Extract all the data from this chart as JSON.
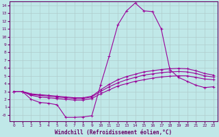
{
  "xlabel": "Windchill (Refroidissement éolien,°C)",
  "ylabel": "",
  "bg_color": "#c0e8e8",
  "line_color": "#990099",
  "grid_color": "#b0cccc",
  "axis_color": "#660066",
  "xlim": [
    -0.5,
    23.5
  ],
  "ylim": [
    -0.8,
    14.5
  ],
  "xticks": [
    0,
    1,
    2,
    3,
    4,
    5,
    6,
    7,
    8,
    9,
    10,
    11,
    12,
    13,
    14,
    15,
    16,
    17,
    18,
    19,
    20,
    21,
    22,
    23
  ],
  "yticks": [
    0,
    1,
    2,
    3,
    4,
    5,
    6,
    7,
    8,
    9,
    10,
    11,
    12,
    13,
    14
  ],
  "series1_x": [
    0,
    1,
    2,
    3,
    4,
    5,
    6,
    7,
    8,
    9,
    10,
    11,
    12,
    13,
    14,
    15,
    16,
    17,
    18,
    19,
    20,
    21,
    22,
    23
  ],
  "series1_y": [
    3.0,
    3.0,
    2.0,
    1.6,
    1.5,
    1.3,
    -0.3,
    -0.3,
    -0.25,
    -0.1,
    3.8,
    7.5,
    11.5,
    13.3,
    14.3,
    13.3,
    13.2,
    11.0,
    5.8,
    4.8,
    4.3,
    3.8,
    3.5,
    3.6
  ],
  "series2_x": [
    0,
    1,
    2,
    3,
    4,
    5,
    6,
    7,
    8,
    9,
    10,
    11,
    12,
    13,
    14,
    15,
    16,
    17,
    18,
    19,
    20,
    21,
    22,
    23
  ],
  "series2_y": [
    3.0,
    3.0,
    2.5,
    2.3,
    2.2,
    2.1,
    2.0,
    1.9,
    1.9,
    2.1,
    2.7,
    3.2,
    3.7,
    4.0,
    4.3,
    4.5,
    4.7,
    4.85,
    4.95,
    5.0,
    5.0,
    4.8,
    4.6,
    4.5
  ],
  "series3_x": [
    0,
    1,
    2,
    3,
    4,
    5,
    6,
    7,
    8,
    9,
    10,
    11,
    12,
    13,
    14,
    15,
    16,
    17,
    18,
    19,
    20,
    21,
    22,
    23
  ],
  "series3_y": [
    3.0,
    3.0,
    2.6,
    2.5,
    2.4,
    2.3,
    2.2,
    2.1,
    2.1,
    2.3,
    3.0,
    3.6,
    4.1,
    4.5,
    4.8,
    5.1,
    5.25,
    5.4,
    5.5,
    5.55,
    5.5,
    5.3,
    5.0,
    4.85
  ],
  "series4_x": [
    0,
    1,
    2,
    3,
    4,
    5,
    6,
    7,
    8,
    9,
    10,
    11,
    12,
    13,
    14,
    15,
    16,
    17,
    18,
    19,
    20,
    21,
    22,
    23
  ],
  "series4_y": [
    3.0,
    3.0,
    2.7,
    2.6,
    2.5,
    2.4,
    2.3,
    2.2,
    2.2,
    2.4,
    3.2,
    3.9,
    4.5,
    4.9,
    5.2,
    5.5,
    5.65,
    5.8,
    5.9,
    5.95,
    5.9,
    5.65,
    5.3,
    5.1
  ]
}
